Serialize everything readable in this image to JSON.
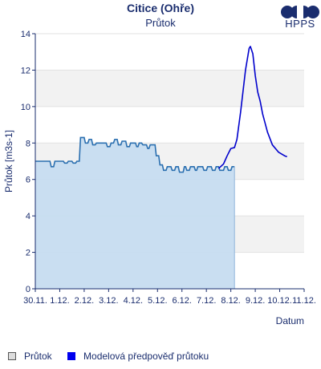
{
  "chart_data": {
    "type": "line",
    "title": "Citice (Ohře)",
    "subtitle": "Průtok",
    "xlabel": "Datum",
    "ylabel": "Průtok [m3s-1]",
    "ylim": [
      0,
      14
    ],
    "yticks": [
      0,
      2,
      4,
      6,
      8,
      10,
      12,
      14
    ],
    "xlim": [
      0,
      11
    ],
    "xticks": [
      {
        "x": 0,
        "label": "30.11."
      },
      {
        "x": 1,
        "label": "1.12."
      },
      {
        "x": 2,
        "label": "2.12."
      },
      {
        "x": 3,
        "label": "3.12."
      },
      {
        "x": 4,
        "label": "4.12."
      },
      {
        "x": 5,
        "label": "5.12."
      },
      {
        "x": 6,
        "label": "6.12."
      },
      {
        "x": 7,
        "label": "7.12."
      },
      {
        "x": 8,
        "label": "8.12."
      },
      {
        "x": 9,
        "label": "9.12."
      },
      {
        "x": 10,
        "label": "10.12."
      },
      {
        "x": 11,
        "label": "11.12."
      }
    ],
    "grid": "horizontal bands",
    "legend_position": "bottom-left",
    "series": [
      {
        "name": "Průtok",
        "kind": "area",
        "line_color": "#2a6fb0",
        "fill_color": "#c6dcf0",
        "points": [
          [
            0.0,
            7.0
          ],
          [
            0.6,
            7.0
          ],
          [
            0.65,
            6.7
          ],
          [
            0.75,
            6.7
          ],
          [
            0.8,
            7.0
          ],
          [
            1.15,
            7.0
          ],
          [
            1.2,
            6.9
          ],
          [
            1.3,
            6.9
          ],
          [
            1.35,
            7.0
          ],
          [
            1.5,
            7.0
          ],
          [
            1.55,
            6.9
          ],
          [
            1.65,
            6.9
          ],
          [
            1.7,
            7.0
          ],
          [
            1.75,
            7.0
          ],
          [
            1.8,
            7.0
          ],
          [
            1.85,
            8.3
          ],
          [
            2.0,
            8.3
          ],
          [
            2.05,
            8.0
          ],
          [
            2.15,
            8.0
          ],
          [
            2.2,
            8.2
          ],
          [
            2.3,
            8.2
          ],
          [
            2.35,
            7.9
          ],
          [
            2.45,
            7.9
          ],
          [
            2.5,
            8.0
          ],
          [
            2.9,
            8.0
          ],
          [
            2.95,
            7.8
          ],
          [
            3.05,
            7.8
          ],
          [
            3.1,
            8.0
          ],
          [
            3.2,
            8.0
          ],
          [
            3.25,
            8.2
          ],
          [
            3.35,
            8.2
          ],
          [
            3.4,
            7.9
          ],
          [
            3.5,
            7.9
          ],
          [
            3.55,
            8.1
          ],
          [
            3.7,
            8.1
          ],
          [
            3.75,
            7.8
          ],
          [
            3.85,
            7.8
          ],
          [
            3.9,
            8.0
          ],
          [
            4.1,
            8.0
          ],
          [
            4.15,
            7.8
          ],
          [
            4.2,
            7.8
          ],
          [
            4.25,
            8.0
          ],
          [
            4.35,
            8.0
          ],
          [
            4.4,
            7.9
          ],
          [
            4.55,
            7.9
          ],
          [
            4.6,
            7.7
          ],
          [
            4.65,
            7.7
          ],
          [
            4.7,
            7.9
          ],
          [
            4.9,
            7.9
          ],
          [
            4.95,
            7.3
          ],
          [
            5.05,
            7.3
          ],
          [
            5.1,
            6.8
          ],
          [
            5.2,
            6.8
          ],
          [
            5.25,
            6.5
          ],
          [
            5.35,
            6.5
          ],
          [
            5.4,
            6.7
          ],
          [
            5.55,
            6.7
          ],
          [
            5.6,
            6.5
          ],
          [
            5.7,
            6.5
          ],
          [
            5.75,
            6.7
          ],
          [
            5.85,
            6.7
          ],
          [
            5.9,
            6.4
          ],
          [
            6.05,
            6.4
          ],
          [
            6.1,
            6.7
          ],
          [
            6.15,
            6.7
          ],
          [
            6.2,
            6.5
          ],
          [
            6.3,
            6.5
          ],
          [
            6.35,
            6.7
          ],
          [
            6.5,
            6.7
          ],
          [
            6.55,
            6.5
          ],
          [
            6.6,
            6.5
          ],
          [
            6.65,
            6.7
          ],
          [
            6.85,
            6.7
          ],
          [
            6.9,
            6.5
          ],
          [
            7.0,
            6.5
          ],
          [
            7.05,
            6.7
          ],
          [
            7.2,
            6.7
          ],
          [
            7.25,
            6.5
          ],
          [
            7.35,
            6.5
          ],
          [
            7.4,
            6.7
          ],
          [
            7.5,
            6.7
          ],
          [
            7.55,
            6.5
          ],
          [
            7.7,
            6.5
          ],
          [
            7.75,
            6.7
          ],
          [
            7.85,
            6.7
          ],
          [
            7.9,
            6.5
          ],
          [
            8.0,
            6.5
          ],
          [
            8.05,
            6.7
          ],
          [
            8.15,
            6.7
          ]
        ]
      },
      {
        "name": "Modelová předpověď průtoku",
        "kind": "line",
        "line_color": "#0000cc",
        "points": [
          [
            7.5,
            6.6
          ],
          [
            7.7,
            6.85
          ],
          [
            7.85,
            7.3
          ],
          [
            8.0,
            7.7
          ],
          [
            8.15,
            7.75
          ],
          [
            8.25,
            8.2
          ],
          [
            8.4,
            9.7
          ],
          [
            8.6,
            12.0
          ],
          [
            8.75,
            13.2
          ],
          [
            8.8,
            13.3
          ],
          [
            8.9,
            12.9
          ],
          [
            9.0,
            11.7
          ],
          [
            9.1,
            10.8
          ],
          [
            9.2,
            10.3
          ],
          [
            9.3,
            9.6
          ],
          [
            9.5,
            8.6
          ],
          [
            9.7,
            7.9
          ],
          [
            9.95,
            7.5
          ],
          [
            10.2,
            7.3
          ],
          [
            10.3,
            7.25
          ]
        ]
      }
    ]
  },
  "logo": {
    "text": "HPPS"
  },
  "legend": {
    "items": [
      {
        "label": "Průtok"
      },
      {
        "label": "Modelová předpověď průtoku"
      }
    ]
  }
}
